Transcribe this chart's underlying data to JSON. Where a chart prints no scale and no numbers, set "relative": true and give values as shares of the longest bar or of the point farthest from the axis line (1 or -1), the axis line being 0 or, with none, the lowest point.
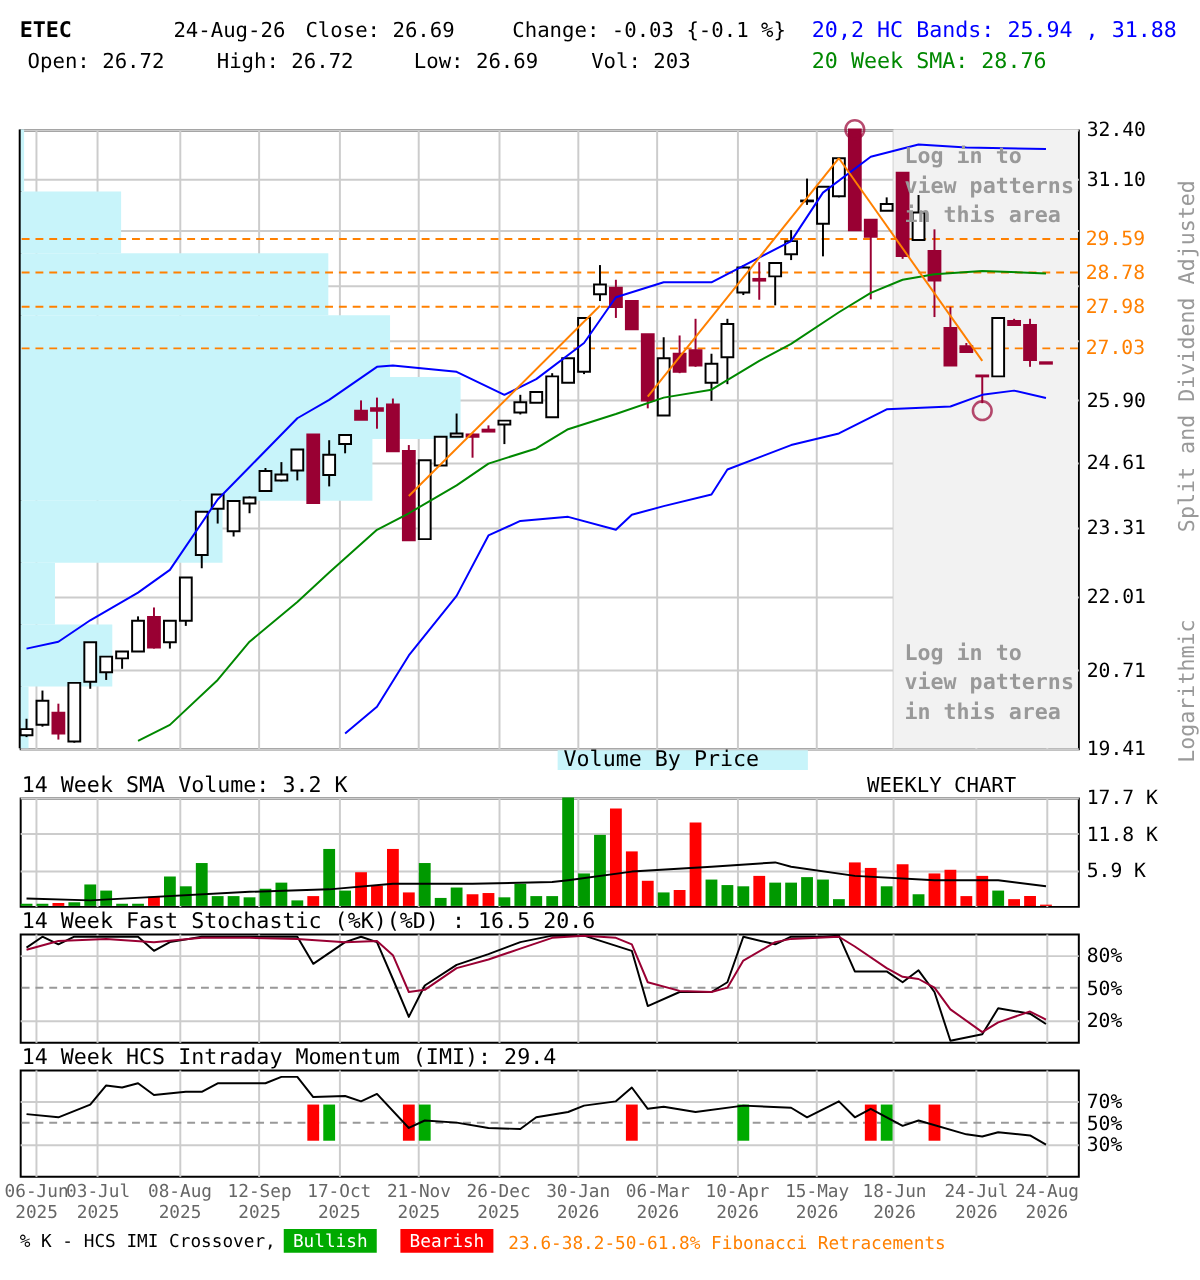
{
  "chart_data": [
    {
      "type": "candlestick",
      "title": "ETEC",
      "ylabel": "Split and Dividend Adjusted",
      "annotations": [
        "24-Aug-26",
        "Close: 26.69",
        "Change: -0.03 {-0.1 %}",
        "Open: 26.72",
        "High: 26.72",
        "Low: 26.69",
        "Vol: 203",
        "Log in to view patterns in this area",
        "Log in to view patterns in this area",
        "Logarithmic"
      ],
      "x": [
        "2025-06-02",
        "2025-06-09",
        "2025-06-16",
        "2025-06-23",
        "2025-06-30",
        "2025-07-07",
        "2025-07-14",
        "2025-07-21",
        "2025-07-28",
        "2025-08-04",
        "2025-08-11",
        "2025-08-18",
        "2025-08-25",
        "2025-09-01",
        "2025-09-08",
        "2025-09-15",
        "2025-09-22",
        "2025-09-29",
        "2025-10-06",
        "2025-10-13",
        "2025-10-20",
        "2025-10-27",
        "2025-11-03",
        "2025-11-10",
        "2025-11-17",
        "2025-11-24",
        "2025-12-01",
        "2025-12-08",
        "2025-12-15",
        "2025-12-22",
        "2025-12-29",
        "2026-01-05",
        "2026-01-12",
        "2026-01-19",
        "2026-01-26",
        "2026-02-02",
        "2026-02-09",
        "2026-02-16",
        "2026-02-23",
        "2026-03-02",
        "2026-03-09",
        "2026-03-16",
        "2026-03-23",
        "2026-03-30",
        "2026-04-06",
        "2026-04-13",
        "2026-04-20",
        "2026-04-27",
        "2026-05-04",
        "2026-05-11",
        "2026-05-18",
        "2026-05-25",
        "2026-06-01",
        "2026-06-08",
        "2026-06-15",
        "2026-06-22",
        "2026-06-29",
        "2026-07-06",
        "2026-07-13",
        "2026-07-20",
        "2026-07-27",
        "2026-08-03",
        "2026-08-10",
        "2026-08-17",
        "2026-08-24"
      ],
      "ohlc": [
        [
          19.62,
          19.89,
          19.59,
          19.72
        ],
        [
          19.79,
          20.36,
          19.76,
          20.19
        ],
        [
          19.99,
          20.14,
          19.55,
          19.65
        ],
        [
          19.52,
          20.49,
          19.5,
          20.49
        ],
        [
          20.51,
          21.19,
          20.39,
          21.19
        ],
        [
          20.67,
          20.94,
          20.54,
          20.94
        ],
        [
          20.91,
          21.03,
          20.73,
          21.03
        ],
        [
          21.03,
          21.65,
          21.03,
          21.57
        ],
        [
          21.64,
          21.81,
          21.08,
          21.1
        ],
        [
          21.19,
          21.57,
          21.08,
          21.57
        ],
        [
          21.57,
          22.36,
          21.48,
          22.36
        ],
        [
          22.78,
          23.61,
          22.53,
          23.61
        ],
        [
          23.67,
          23.95,
          23.38,
          23.95
        ],
        [
          23.23,
          23.82,
          23.13,
          23.82
        ],
        [
          23.77,
          23.91,
          23.58,
          23.89
        ],
        [
          24.02,
          24.48,
          24.02,
          24.42
        ],
        [
          24.23,
          24.6,
          24.21,
          24.35
        ],
        [
          24.43,
          24.86,
          24.23,
          24.86
        ],
        [
          25.17,
          25.17,
          23.78,
          23.78
        ],
        [
          24.34,
          25.05,
          24.11,
          24.75
        ],
        [
          24.97,
          25.16,
          24.78,
          25.16
        ],
        [
          25.67,
          25.89,
          25.48,
          25.48
        ],
        [
          25.72,
          25.95,
          25.29,
          25.67
        ],
        [
          25.8,
          25.93,
          24.82,
          24.82
        ],
        [
          24.83,
          24.95,
          23.06,
          23.06
        ],
        [
          23.08,
          24.64,
          23.08,
          24.64
        ],
        [
          24.53,
          25.12,
          24.53,
          25.12
        ],
        [
          25.12,
          25.61,
          25.12,
          25.19
        ],
        [
          25.17,
          25.19,
          24.69,
          25.12
        ],
        [
          25.27,
          25.36,
          25.23,
          25.23
        ],
        [
          25.38,
          25.46,
          24.97,
          25.46
        ],
        [
          25.63,
          26.01,
          25.59,
          25.85
        ],
        [
          25.84,
          26.07,
          25.84,
          26.07
        ],
        [
          25.53,
          26.48,
          25.53,
          26.41
        ],
        [
          26.27,
          26.81,
          26.27,
          26.81
        ],
        [
          26.51,
          27.72,
          26.46,
          27.72
        ],
        [
          28.27,
          28.96,
          28.11,
          28.5
        ],
        [
          28.42,
          28.61,
          27.72,
          27.97
        ],
        [
          28.11,
          28.11,
          27.46,
          27.46
        ],
        [
          27.35,
          27.35,
          25.72,
          25.89
        ],
        [
          25.57,
          27.28,
          25.57,
          26.81
        ],
        [
          26.91,
          27.32,
          26.48,
          26.51
        ],
        [
          26.99,
          27.7,
          26.62,
          26.65
        ],
        [
          26.27,
          26.91,
          25.88,
          26.69
        ],
        [
          26.83,
          27.7,
          26.24,
          27.58
        ],
        [
          28.31,
          28.96,
          28.25,
          28.9
        ],
        [
          28.63,
          29.03,
          28.14,
          28.59
        ],
        [
          28.69,
          29.01,
          28.01,
          29.01
        ],
        [
          29.22,
          29.81,
          29.08,
          29.54
        ],
        [
          30.53,
          31.11,
          30.44,
          30.55
        ],
        [
          29.97,
          30.9,
          29.17,
          30.9
        ],
        [
          30.66,
          31.64,
          30.63,
          31.64
        ],
        [
          32.4,
          32.4,
          29.81,
          29.81
        ],
        [
          30.07,
          30.07,
          28.15,
          29.65
        ],
        [
          30.29,
          30.63,
          30.29,
          30.46
        ],
        [
          31.26,
          31.26,
          29.11,
          29.18
        ],
        [
          29.57,
          30.69,
          29.57,
          30.25
        ],
        [
          29.3,
          29.83,
          27.74,
          28.59
        ],
        [
          27.49,
          27.97,
          26.65,
          26.65
        ],
        [
          27.08,
          27.15,
          26.95,
          26.95
        ],
        [
          26.43,
          26.43,
          25.83,
          26.41
        ],
        [
          26.41,
          27.72,
          26.41,
          27.72
        ],
        [
          27.65,
          27.7,
          27.56,
          27.56
        ],
        [
          27.56,
          27.7,
          26.62,
          26.77
        ],
        [
          26.72,
          26.72,
          26.69,
          26.69
        ]
      ],
      "colors": [
        "#ffffff",
        "#ffffff",
        "#990033",
        "#ffffff",
        "#ffffff",
        "#ffffff",
        "#ffffff",
        "#ffffff",
        "#990033",
        "#ffffff",
        "#ffffff",
        "#ffffff",
        "#ffffff",
        "#ffffff",
        "#ffffff",
        "#ffffff",
        "#ffffff",
        "#ffffff",
        "#990033",
        "#ffffff",
        "#ffffff",
        "#990033",
        "#990033",
        "#990033",
        "#990033",
        "#ffffff",
        "#ffffff",
        "#ffffff",
        "#990033",
        "#990033",
        "#ffffff",
        "#ffffff",
        "#ffffff",
        "#ffffff",
        "#ffffff",
        "#ffffff",
        "#ffffff",
        "#990033",
        "#990033",
        "#990033",
        "#ffffff",
        "#990033",
        "#990033",
        "#ffffff",
        "#ffffff",
        "#ffffff",
        "#990033",
        "#ffffff",
        "#ffffff",
        "#ffffff",
        "#ffffff",
        "#ffffff",
        "#990033",
        "#990033",
        "#ffffff",
        "#990033",
        "#ffffff",
        "#990033",
        "#990033",
        "#990033",
        "#990033",
        "#ffffff",
        "#990033",
        "#990033",
        "#990033"
      ],
      "series": [
        {
          "type": "line",
          "name": "20,2 HC Bands: 25.94 , 31.88",
          "color": "#0000ff",
          "x": [
            "2025-06-02",
            "2025-06-16",
            "2025-06-30",
            "2025-07-21",
            "2025-08-04",
            "2025-08-25",
            "2025-09-08",
            "2025-09-29",
            "2025-10-13",
            "2025-11-03",
            "2025-11-10",
            "2025-12-08",
            "2025-12-29",
            "2026-01-12",
            "2026-02-02",
            "2026-02-16",
            "2026-03-09",
            "2026-03-30",
            "2026-05-04",
            "2026-05-18",
            "2026-06-08",
            "2026-06-29",
            "2026-07-20",
            "2026-08-24"
          ],
          "values": [
            21.08,
            21.2,
            21.58,
            22.08,
            22.5,
            23.85,
            24.5,
            25.51,
            25.9,
            26.62,
            26.65,
            26.51,
            26.01,
            26.35,
            27.15,
            28.2,
            28.55,
            28.55,
            29.54,
            30.75,
            31.68,
            32.0,
            31.92,
            31.88
          ]
        },
        {
          "type": "line",
          "color": "#0000ff",
          "x": [
            "2025-10-20",
            "2025-11-03",
            "2025-11-17",
            "2025-12-08",
            "2025-12-22",
            "2026-01-05",
            "2026-01-26",
            "2026-02-16",
            "2026-02-23",
            "2026-03-09",
            "2026-03-30",
            "2026-04-06",
            "2026-05-04",
            "2026-05-25",
            "2026-06-15",
            "2026-07-13",
            "2026-07-27",
            "2026-08-10",
            "2026-08-24"
          ],
          "values": [
            19.65,
            20.09,
            20.96,
            22.02,
            23.15,
            23.43,
            23.51,
            23.26,
            23.55,
            23.72,
            23.95,
            24.45,
            24.95,
            25.19,
            25.7,
            25.76,
            26.01,
            26.1,
            25.94
          ]
        },
        {
          "type": "line",
          "name": "20 Week SMA: 28.76",
          "color": "#008800",
          "x": [
            "2025-07-21",
            "2025-08-04",
            "2025-08-25",
            "2025-09-08",
            "2025-09-29",
            "2025-10-13",
            "2025-11-03",
            "2025-11-17",
            "2025-12-08",
            "2025-12-22",
            "2026-01-12",
            "2026-01-26",
            "2026-02-16",
            "2026-03-09",
            "2026-03-30",
            "2026-04-20",
            "2026-05-04",
            "2026-05-25",
            "2026-06-08",
            "2026-06-22",
            "2026-07-06",
            "2026-07-27",
            "2026-08-24"
          ],
          "values": [
            19.53,
            19.79,
            20.54,
            21.2,
            21.91,
            22.45,
            23.26,
            23.58,
            24.13,
            24.57,
            24.88,
            25.28,
            25.6,
            25.95,
            26.12,
            26.75,
            27.13,
            27.85,
            28.3,
            28.61,
            28.74,
            28.82,
            28.76
          ]
        },
        {
          "type": "line",
          "color": "#ff8000",
          "x": [
            "2025-11-17",
            "2026-02-09"
          ],
          "values": [
            23.92,
            28.0
          ]
        },
        {
          "type": "line",
          "color": "#ff8000",
          "x": [
            "2026-03-02",
            "2026-05-25"
          ],
          "values": [
            25.97,
            31.64
          ]
        },
        {
          "type": "line",
          "color": "#ff8000",
          "x": [
            "2026-05-25",
            "2026-07-27"
          ],
          "values": [
            31.64,
            26.75
          ]
        },
        {
          "type": "scatter",
          "marker": "circle",
          "color": "#990033",
          "x": [
            "2026-06-01",
            "2026-07-27"
          ],
          "values": [
            32.4,
            25.67
          ]
        }
      ],
      "ref_lines": [
        {
          "axis": "y",
          "value": 29.59,
          "label": "29.59",
          "color": "#ff8000",
          "line_style": "dashed"
        },
        {
          "axis": "y",
          "value": 28.78,
          "label": "28.78",
          "color": "#ff8000",
          "line_style": "dashed"
        },
        {
          "axis": "y",
          "value": 27.98,
          "label": "27.98",
          "color": "#ff8000",
          "line_style": "dashed"
        },
        {
          "axis": "y",
          "value": 27.03,
          "label": "27.03",
          "color": "#ff8000",
          "line_style": "dashed"
        }
      ],
      "bands": [
        {
          "axis": "x",
          "from": "2026-06-18",
          "to": "2026-09-07",
          "color": "#f2f2f2"
        }
      ],
      "log": "y",
      "ylim": [
        19.41,
        32.4
      ],
      "yticks": [
        {
          "value": 32.4,
          "label": "32.40"
        },
        {
          "value": 31.1,
          "label": "31.10"
        },
        {
          "value": 29.8,
          "label": null
        },
        {
          "value": 28.5,
          "label": null
        },
        {
          "value": 27.2,
          "label": null
        },
        {
          "value": 25.9,
          "label": "25.90"
        },
        {
          "value": 24.61,
          "label": "24.61"
        },
        {
          "value": 23.31,
          "label": "23.31"
        },
        {
          "value": 22.01,
          "label": "22.01"
        },
        {
          "value": 20.71,
          "label": "20.71"
        },
        {
          "value": 19.41,
          "label": "19.41"
        }
      ],
      "xlim": [
        "2025-05-30",
        "2026-09-07"
      ],
      "xticks": [
        {
          "value": "2025-06-06",
          "label": null
        },
        {
          "value": "2025-07-03",
          "label": null
        },
        {
          "value": "2025-08-08",
          "label": null
        },
        {
          "value": "2025-09-12",
          "label": null
        },
        {
          "value": "2025-10-17",
          "label": null
        },
        {
          "value": "2025-11-21",
          "label": null
        },
        {
          "value": "2025-12-26",
          "label": null
        },
        {
          "value": "2026-01-30",
          "label": null
        },
        {
          "value": "2026-03-06",
          "label": null
        },
        {
          "value": "2026-04-10",
          "label": null
        },
        {
          "value": "2026-05-15",
          "label": null
        },
        {
          "value": "2026-06-18",
          "label": null
        },
        {
          "value": "2026-07-24",
          "label": null
        },
        {
          "value": "2026-08-24",
          "label": null
        }
      ],
      "tick_labels": "y",
      "grid": true
    },
    {
      "type": "bar",
      "orientation": "horizontal",
      "relative": true,
      "categories": [
        null,
        null,
        null,
        null,
        null,
        null,
        null,
        null,
        null,
        null
      ],
      "series": [
        {
          "name": "Volume By Price",
          "color": "#c8f4fa",
          "values": [
            0.01,
            0.23,
            0.7,
            0.84,
            1,
            0.8,
            0.46,
            0.08,
            0.21,
            0.02
          ]
        }
      ],
      "tick_labels": false
    },
    {
      "type": "bar",
      "title": "14 Week SMA Volume: 3.2 K",
      "annotations": [
        "WEEKLY CHART"
      ],
      "x": [
        "2025-06-02",
        "2025-06-09",
        "2025-06-16",
        "2025-06-23",
        "2025-06-30",
        "2025-07-07",
        "2025-07-14",
        "2025-07-21",
        "2025-07-28",
        "2025-08-04",
        "2025-08-11",
        "2025-08-18",
        "2025-08-25",
        "2025-09-01",
        "2025-09-08",
        "2025-09-15",
        "2025-09-22",
        "2025-09-29",
        "2025-10-06",
        "2025-10-13",
        "2025-10-20",
        "2025-10-27",
        "2025-11-03",
        "2025-11-10",
        "2025-11-17",
        "2025-11-24",
        "2025-12-01",
        "2025-12-08",
        "2025-12-15",
        "2025-12-22",
        "2025-12-29",
        "2026-01-05",
        "2026-01-12",
        "2026-01-19",
        "2026-01-26",
        "2026-02-02",
        "2026-02-09",
        "2026-02-16",
        "2026-02-23",
        "2026-03-02",
        "2026-03-09",
        "2026-03-16",
        "2026-03-23",
        "2026-03-30",
        "2026-04-06",
        "2026-04-13",
        "2026-04-20",
        "2026-04-27",
        "2026-05-04",
        "2026-05-11",
        "2026-05-18",
        "2026-05-25",
        "2026-06-01",
        "2026-06-08",
        "2026-06-15",
        "2026-06-22",
        "2026-06-29",
        "2026-07-06",
        "2026-07-13",
        "2026-07-20",
        "2026-07-27",
        "2026-08-03",
        "2026-08-10",
        "2026-08-17",
        "2026-08-24"
      ],
      "series": [
        {
          "type": "bar",
          "values": [
            350,
            350,
            470,
            590,
            3500,
            2500,
            350,
            350,
            1500,
            4800,
            3200,
            7000,
            1600,
            1600,
            1400,
            2800,
            3800,
            900,
            1600,
            9300,
            2500,
            5500,
            3300,
            9300,
            2200,
            7000,
            1300,
            3000,
            1900,
            2100,
            1400,
            3600,
            1600,
            1600,
            17700,
            5300,
            11600,
            15900,
            8900,
            4100,
            2200,
            2600,
            13600,
            4300,
            3400,
            3200,
            4900,
            3800,
            3800,
            4700,
            4300,
            1100,
            7100,
            6200,
            3200,
            6800,
            1900,
            5300,
            5900,
            1600,
            4900,
            2500,
            1100,
            1600,
            203
          ],
          "colors": [
            "#009900",
            "#009900",
            "#ff0000",
            "#009900",
            "#009900",
            "#009900",
            "#009900",
            "#009900",
            "#ff0000",
            "#009900",
            "#009900",
            "#009900",
            "#009900",
            "#009900",
            "#009900",
            "#009900",
            "#009900",
            "#009900",
            "#ff0000",
            "#009900",
            "#009900",
            "#ff0000",
            "#ff0000",
            "#ff0000",
            "#ff0000",
            "#009900",
            "#009900",
            "#009900",
            "#ff0000",
            "#ff0000",
            "#009900",
            "#009900",
            "#009900",
            "#009900",
            "#009900",
            "#009900",
            "#009900",
            "#ff0000",
            "#ff0000",
            "#ff0000",
            "#009900",
            "#ff0000",
            "#ff0000",
            "#009900",
            "#009900",
            "#009900",
            "#ff0000",
            "#009900",
            "#009900",
            "#009900",
            "#009900",
            "#009900",
            "#ff0000",
            "#ff0000",
            "#009900",
            "#ff0000",
            "#009900",
            "#ff0000",
            "#ff0000",
            "#ff0000",
            "#ff0000",
            "#009900",
            "#ff0000",
            "#ff0000",
            "#ff0000"
          ]
        },
        {
          "type": "line",
          "color": "#000000",
          "x": [
            "2025-06-02",
            "2025-06-30",
            "2025-09-08",
            "2025-10-13",
            "2025-11-10",
            "2025-12-15",
            "2026-01-19",
            "2026-01-26",
            "2026-02-23",
            "2026-03-30",
            "2026-04-27",
            "2026-05-04",
            "2026-06-01",
            "2026-07-06",
            "2026-08-03",
            "2026-08-24"
          ],
          "values": [
            1200,
            900,
            2300,
            2700,
            3600,
            3600,
            3900,
            4200,
            5600,
            6400,
            7100,
            6400,
            4900,
            4200,
            4200,
            3200
          ]
        }
      ],
      "ylim": [
        0,
        17700
      ],
      "yticks": [
        {
          "value": 5900,
          "label": "5.9 K"
        },
        {
          "value": 11800,
          "label": "11.8 K"
        },
        {
          "value": 17700,
          "label": "17.7 K"
        }
      ],
      "xlim": [
        "2025-05-30",
        "2026-09-07"
      ],
      "xticks": [
        {
          "value": "2025-06-06",
          "label": null
        },
        {
          "value": "2025-07-03",
          "label": null
        },
        {
          "value": "2025-08-08",
          "label": null
        },
        {
          "value": "2025-09-12",
          "label": null
        },
        {
          "value": "2025-10-17",
          "label": null
        },
        {
          "value": "2025-11-21",
          "label": null
        },
        {
          "value": "2025-12-26",
          "label": null
        },
        {
          "value": "2026-01-30",
          "label": null
        },
        {
          "value": "2026-03-06",
          "label": null
        },
        {
          "value": "2026-04-10",
          "label": null
        },
        {
          "value": "2026-05-15",
          "label": null
        },
        {
          "value": "2026-06-18",
          "label": null
        },
        {
          "value": "2026-07-24",
          "label": null
        },
        {
          "value": "2026-08-24",
          "label": null
        }
      ],
      "tick_labels": "y",
      "grid": true
    },
    {
      "type": "line",
      "title": "14 Week Fast Stochastic (%K)(%D) : 16.5 20.6",
      "series": [
        {
          "color": "#000000",
          "x": [
            "2025-06-02",
            "2025-06-09",
            "2025-06-16",
            "2025-06-23",
            "2025-07-07",
            "2025-07-21",
            "2025-07-28",
            "2025-08-04",
            "2025-08-18",
            "2025-09-08",
            "2025-09-22",
            "2025-09-29",
            "2025-10-06",
            "2025-10-20",
            "2025-10-27",
            "2025-11-03",
            "2025-11-10",
            "2025-11-17",
            "2025-11-24",
            "2025-12-08",
            "2025-12-22",
            "2026-01-05",
            "2026-01-19",
            "2026-02-02",
            "2026-02-23",
            "2026-03-02",
            "2026-03-16",
            "2026-03-30",
            "2026-04-06",
            "2026-04-13",
            "2026-04-27",
            "2026-05-04",
            "2026-05-18",
            "2026-05-25",
            "2026-06-01",
            "2026-06-15",
            "2026-06-22",
            "2026-06-29",
            "2026-07-06",
            "2026-07-13",
            "2026-07-27",
            "2026-08-03",
            "2026-08-17",
            "2026-08-24"
          ],
          "values": [
            87,
            97,
            90,
            97,
            97,
            97,
            84,
            92,
            97,
            97,
            97,
            97,
            72,
            92,
            97,
            92,
            58,
            23,
            52,
            71,
            81,
            92,
            98,
            98,
            84,
            33,
            46,
            46,
            55,
            97,
            90,
            97,
            97,
            98,
            65,
            65,
            55,
            66,
            46,
            1,
            7,
            31,
            26,
            16.5
          ]
        },
        {
          "color": "#990033",
          "x": [
            "2025-06-02",
            "2025-06-16",
            "2025-07-07",
            "2025-07-28",
            "2025-08-18",
            "2025-09-08",
            "2025-09-29",
            "2025-10-20",
            "2025-11-03",
            "2025-11-10",
            "2025-11-17",
            "2025-11-24",
            "2025-12-08",
            "2025-12-22",
            "2026-01-05",
            "2026-01-19",
            "2026-02-02",
            "2026-02-16",
            "2026-02-23",
            "2026-03-02",
            "2026-03-16",
            "2026-03-30",
            "2026-04-06",
            "2026-04-13",
            "2026-04-27",
            "2026-05-04",
            "2026-05-25",
            "2026-06-01",
            "2026-06-15",
            "2026-06-22",
            "2026-06-29",
            "2026-07-06",
            "2026-07-13",
            "2026-07-27",
            "2026-08-03",
            "2026-08-17",
            "2026-08-24"
          ],
          "values": [
            85,
            93,
            95,
            92,
            96,
            96,
            95,
            92,
            93,
            80,
            46,
            48,
            68,
            76,
            86,
            96,
            98,
            96,
            90,
            55,
            47,
            46,
            50,
            75,
            92,
            95,
            97,
            88,
            68,
            60,
            58,
            50,
            30,
            9,
            18,
            28,
            20.6
          ]
        }
      ],
      "ylim": [
        0,
        100
      ],
      "yticks": [
        {
          "value": 20,
          "label": "20%"
        },
        {
          "value": 50,
          "label": "50%"
        },
        {
          "value": 80,
          "label": "80%"
        }
      ],
      "ref_lines": [
        {
          "axis": "y",
          "value": 50,
          "color": "#999999",
          "line_style": "dashed"
        }
      ],
      "xlim": [
        "2025-05-30",
        "2026-09-07"
      ],
      "xticks": [
        {
          "value": "2025-06-06",
          "label": null
        },
        {
          "value": "2025-07-03",
          "label": null
        },
        {
          "value": "2025-08-08",
          "label": null
        },
        {
          "value": "2025-09-12",
          "label": null
        },
        {
          "value": "2025-10-17",
          "label": null
        },
        {
          "value": "2025-11-21",
          "label": null
        },
        {
          "value": "2025-12-26",
          "label": null
        },
        {
          "value": "2026-01-30",
          "label": null
        },
        {
          "value": "2026-03-06",
          "label": null
        },
        {
          "value": "2026-04-10",
          "label": null
        },
        {
          "value": "2026-05-15",
          "label": null
        },
        {
          "value": "2026-06-18",
          "label": null
        },
        {
          "value": "2026-07-24",
          "label": null
        },
        {
          "value": "2026-08-24",
          "label": null
        }
      ],
      "tick_labels": "y",
      "grid": true
    },
    {
      "type": "line",
      "title": "14 Week HCS Intraday Momentum (IMI): 29.4",
      "legend_title": "% K - HCS IMI Crossover,",
      "annotations": [
        "23.6-38.2-50-61.8% Fibonacci Retracements"
      ],
      "series": [
        {
          "color": "#000000",
          "x": [
            "2025-06-02",
            "2025-06-16",
            "2025-06-30",
            "2025-07-07",
            "2025-07-14",
            "2025-07-21",
            "2025-07-28",
            "2025-08-11",
            "2025-08-18",
            "2025-08-25",
            "2025-09-15",
            "2025-09-22",
            "2025-09-29",
            "2025-10-06",
            "2025-10-20",
            "2025-10-27",
            "2025-11-03",
            "2025-11-17",
            "2025-11-24",
            "2025-12-08",
            "2025-12-22",
            "2026-01-05",
            "2026-01-12",
            "2026-01-26",
            "2026-02-02",
            "2026-02-16",
            "2026-02-23",
            "2026-03-02",
            "2026-03-09",
            "2026-03-23",
            "2026-04-13",
            "2026-05-04",
            "2026-05-11",
            "2026-05-25",
            "2026-06-01",
            "2026-06-08",
            "2026-06-22",
            "2026-06-29",
            "2026-07-20",
            "2026-07-27",
            "2026-08-03",
            "2026-08-17",
            "2026-08-24"
          ],
          "values": [
            58,
            55,
            67,
            85,
            83,
            87,
            76,
            79,
            79,
            87,
            87,
            93,
            93,
            74,
            75,
            70,
            77,
            45,
            52,
            50,
            45,
            44,
            55,
            60,
            66,
            70,
            83,
            63,
            65,
            60,
            66,
            64,
            55,
            70,
            55,
            63,
            47,
            52,
            39,
            37,
            41,
            38,
            29.4
          ]
        },
        {
          "type": "bar",
          "name": "Bullish",
          "color": "#00aa00",
          "x": [
            "2025-10-13",
            "2025-11-24",
            "2026-04-13",
            "2026-06-15"
          ],
          "base": [
            33,
            33,
            33,
            33
          ],
          "values": [
            34,
            34,
            34,
            34
          ]
        },
        {
          "type": "bar",
          "name": "Bearish",
          "color": "#ff0000",
          "x": [
            "2025-10-06",
            "2025-11-17",
            "2026-02-23",
            "2026-06-08",
            "2026-07-06"
          ],
          "base": [
            33,
            33,
            33,
            33,
            33
          ],
          "values": [
            34,
            34,
            34,
            34,
            34
          ]
        }
      ],
      "ylim": [
        0,
        100
      ],
      "yticks": [
        {
          "value": 30,
          "label": "30%"
        },
        {
          "value": 50,
          "label": "50%"
        },
        {
          "value": 70,
          "label": "70%"
        }
      ],
      "ref_lines": [
        {
          "axis": "y",
          "value": 50,
          "color": "#999999",
          "line_style": "dashed"
        }
      ],
      "xlim": [
        "2025-05-30",
        "2026-09-07"
      ],
      "xticks": [
        {
          "value": "2025-06-06",
          "label": "06-Jun 2025"
        },
        {
          "value": "2025-07-03",
          "label": "03-Jul 2025"
        },
        {
          "value": "2025-08-08",
          "label": "08-Aug 2025"
        },
        {
          "value": "2025-09-12",
          "label": "12-Sep 2025"
        },
        {
          "value": "2025-10-17",
          "label": "17-Oct 2025"
        },
        {
          "value": "2025-11-21",
          "label": "21-Nov 2025"
        },
        {
          "value": "2025-12-26",
          "label": "26-Dec 2025"
        },
        {
          "value": "2026-01-30",
          "label": "30-Jan 2026"
        },
        {
          "value": "2026-03-06",
          "label": "06-Mar 2026"
        },
        {
          "value": "2026-04-10",
          "label": "10-Apr 2026"
        },
        {
          "value": "2026-05-15",
          "label": "15-May 2026"
        },
        {
          "value": "2026-06-18",
          "label": "18-Jun 2026"
        },
        {
          "value": "2026-07-24",
          "label": "24-Jul 2026"
        },
        {
          "value": "2026-08-24",
          "label": "24-Aug 2026"
        }
      ],
      "grid": true,
      "legend": "bottom"
    }
  ]
}
